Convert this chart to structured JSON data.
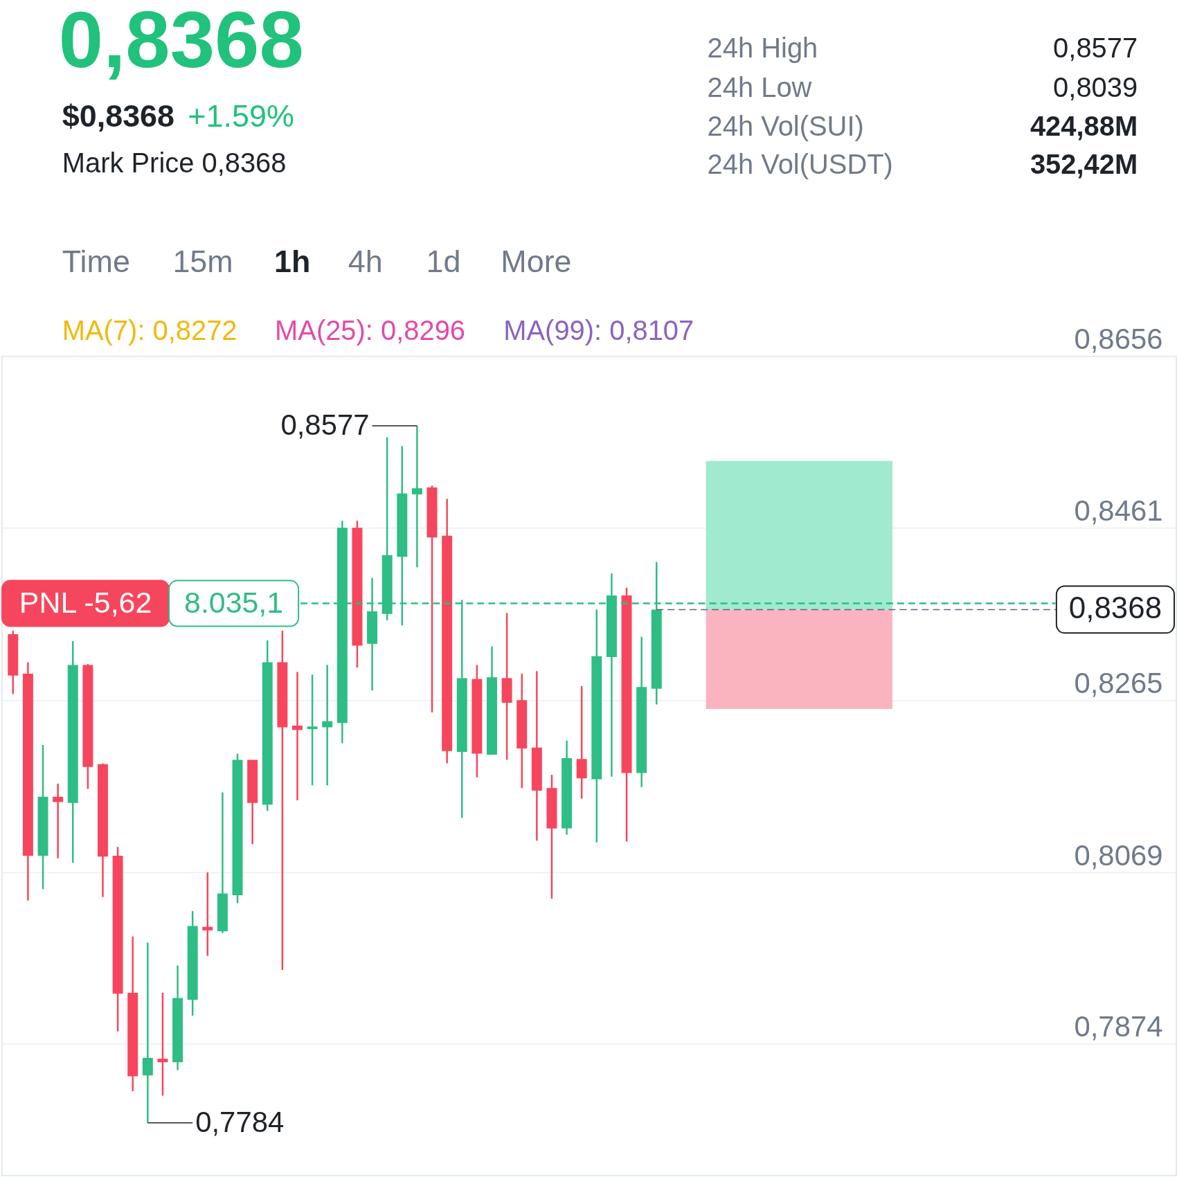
{
  "chart_data": {
    "type": "candlestick",
    "title": "0,8368",
    "categories": [
      null,
      null,
      null,
      null,
      null,
      null,
      null,
      null,
      null,
      null,
      null,
      null,
      null,
      null,
      null,
      null,
      null,
      null,
      null,
      null,
      null,
      null,
      null,
      null,
      null,
      null,
      null,
      null,
      null,
      null,
      null,
      null,
      null,
      null,
      null,
      null,
      null,
      null,
      null,
      null,
      null,
      null,
      null,
      null,
      null,
      null,
      null,
      null,
      null,
      null,
      null,
      null,
      null,
      null,
      null,
      null,
      null,
      null,
      null,
      null,
      null,
      null,
      null,
      null,
      null,
      null,
      null,
      null,
      null,
      null,
      null,
      null,
      null,
      null,
      null,
      null,
      null,
      null
    ],
    "ohlc": [
      [
        0.834,
        0.8344,
        0.8272,
        0.8293
      ],
      [
        0.8295,
        0.8308,
        0.8037,
        0.8088
      ],
      [
        0.8088,
        0.8214,
        0.805,
        0.8155
      ],
      [
        0.8155,
        0.817,
        0.8085,
        0.8149
      ],
      [
        0.8148,
        0.8332,
        0.808,
        0.8305
      ],
      [
        0.8305,
        0.8306,
        0.8164,
        0.8189
      ],
      [
        0.8192,
        0.8193,
        0.8041,
        0.8087
      ],
      [
        0.8088,
        0.8098,
        0.7888,
        0.7931
      ],
      [
        0.7932,
        0.7996,
        0.782,
        0.7837
      ],
      [
        0.7838,
        0.7989,
        0.7784,
        0.7858
      ],
      [
        0.7857,
        0.7932,
        0.7815,
        0.7853
      ],
      [
        0.7853,
        0.7963,
        0.7844,
        0.7926
      ],
      [
        0.7924,
        0.8025,
        0.7906,
        0.8008
      ],
      [
        0.8007,
        0.8069,
        0.7974,
        0.8003
      ],
      [
        0.8002,
        0.816,
        0.8,
        0.8045
      ],
      [
        0.8043,
        0.8204,
        0.8034,
        0.8197
      ],
      [
        0.8197,
        0.8197,
        0.8101,
        0.8148
      ],
      [
        0.8146,
        0.8333,
        0.8139,
        0.8308
      ],
      [
        0.8308,
        0.8344,
        0.7958,
        0.8234
      ],
      [
        0.8236,
        0.8297,
        0.8151,
        0.8231
      ],
      [
        0.8232,
        0.8294,
        0.8168,
        0.8235
      ],
      [
        0.8234,
        0.8305,
        0.8168,
        0.8241
      ],
      [
        0.8239,
        0.8469,
        0.8216,
        0.8461
      ],
      [
        0.8461,
        0.8469,
        0.8302,
        0.8327
      ],
      [
        0.8329,
        0.8404,
        0.8276,
        0.8366
      ],
      [
        0.8363,
        0.8564,
        0.8356,
        0.843
      ],
      [
        0.8428,
        0.8554,
        0.835,
        0.85
      ],
      [
        0.8499,
        0.8577,
        0.8416,
        0.8506
      ],
      [
        0.8507,
        0.8509,
        0.8251,
        0.845
      ],
      [
        0.8452,
        0.8494,
        0.8193,
        0.8207
      ],
      [
        0.8206,
        0.8379,
        0.8131,
        0.829
      ],
      [
        0.8289,
        0.8305,
        0.8177,
        0.8204
      ],
      [
        0.8203,
        0.8326,
        0.8203,
        0.8291
      ],
      [
        0.829,
        0.8364,
        0.8197,
        0.8262
      ],
      [
        0.8265,
        0.8295,
        0.8165,
        0.821
      ],
      [
        0.8211,
        0.8298,
        0.8105,
        0.8162
      ],
      [
        0.8165,
        0.818,
        0.8039,
        0.8119
      ],
      [
        0.8119,
        0.8219,
        0.8112,
        0.8199
      ],
      [
        0.8198,
        0.8281,
        0.8153,
        0.8176
      ],
      [
        0.8175,
        0.8368,
        0.8103,
        0.8315
      ],
      [
        0.8314,
        0.8409,
        0.8178,
        0.8384
      ],
      [
        0.8384,
        0.8393,
        0.8104,
        0.8182
      ],
      [
        0.8182,
        0.8337,
        0.8166,
        0.828
      ],
      [
        0.8278,
        0.8422,
        0.826,
        0.8368
      ],
      null,
      null,
      null,
      null,
      null,
      null,
      null,
      null,
      null,
      null,
      null,
      null,
      null,
      null,
      null,
      null,
      null,
      null,
      null,
      null,
      null,
      null,
      null,
      null,
      null,
      null,
      null,
      null,
      null,
      null,
      null,
      null,
      null,
      null
    ],
    "colors": [
      "#f6465d",
      "#f6465d",
      "#2ebd85",
      "#f6465d",
      "#2ebd85",
      "#f6465d",
      "#f6465d",
      "#f6465d",
      "#f6465d",
      "#2ebd85",
      "#f6465d",
      "#2ebd85",
      "#2ebd85",
      "#f6465d",
      "#2ebd85",
      "#2ebd85",
      "#f6465d",
      "#2ebd85",
      "#f6465d",
      "#f6465d",
      "#2ebd85",
      "#2ebd85",
      "#2ebd85",
      "#f6465d",
      "#2ebd85",
      "#2ebd85",
      "#2ebd85",
      "#2ebd85",
      "#f6465d",
      "#f6465d",
      "#2ebd85",
      "#f6465d",
      "#2ebd85",
      "#f6465d",
      "#f6465d",
      "#f6465d",
      "#f6465d",
      "#2ebd85",
      "#f6465d",
      "#2ebd85",
      "#2ebd85",
      "#f6465d",
      "#2ebd85",
      "#2ebd85",
      null,
      null,
      null,
      null,
      null,
      null,
      null,
      null,
      null,
      null,
      null,
      null,
      null,
      null,
      null,
      null,
      null,
      null,
      null,
      null,
      null,
      null,
      null,
      null,
      null,
      null,
      null,
      null,
      null,
      null,
      null,
      null,
      null,
      null
    ],
    "ylim": [
      0.7724,
      0.8656
    ],
    "yticks": [
      {
        "value": 0.8656,
        "label": "0,8656"
      },
      {
        "value": 0.8461,
        "label": "0,8461"
      },
      {
        "value": 0.8265,
        "label": "0,8265"
      },
      {
        "value": 0.8069,
        "label": "0,8069"
      },
      {
        "value": 0.7874,
        "label": "0,7874"
      }
    ],
    "grid": "y",
    "tick_labels": "y",
    "ref_lines": [
      {
        "axis": "y",
        "value": 0.8375,
        "color": "#2ebd85",
        "line_style": "dashed"
      },
      {
        "axis": "y",
        "value": 0.8368,
        "label": "0,8368",
        "color": "#5e6673",
        "line_style": "dashed"
      }
    ],
    "bands": [
      {
        "axis": "y",
        "from": 0.8368,
        "to": 0.8537,
        "color": "#a0ead0"
      },
      {
        "axis": "y",
        "from": 0.8255,
        "to": 0.8368,
        "color": "#fab4bf"
      }
    ],
    "annotations": [
      "$0,8368",
      "+1.59%",
      "Mark Price 0,8368",
      "24h High",
      "0,8577",
      "24h Low",
      "0,8039",
      "24h Vol(SUI)",
      "424,88M",
      "24h Vol(USDT)",
      "352,42M",
      "Time",
      "15m",
      "1h",
      "4h",
      "1d",
      "More",
      "MA(7): 0,8272",
      "MA(25): 0,8296",
      "MA(99): 0,8107",
      "0,8577",
      "0,7784",
      {
        "text": "PNL -5,62",
        "y": 0.8375
      },
      {
        "text": "8.035,1",
        "y": 0.8375
      }
    ]
  }
}
